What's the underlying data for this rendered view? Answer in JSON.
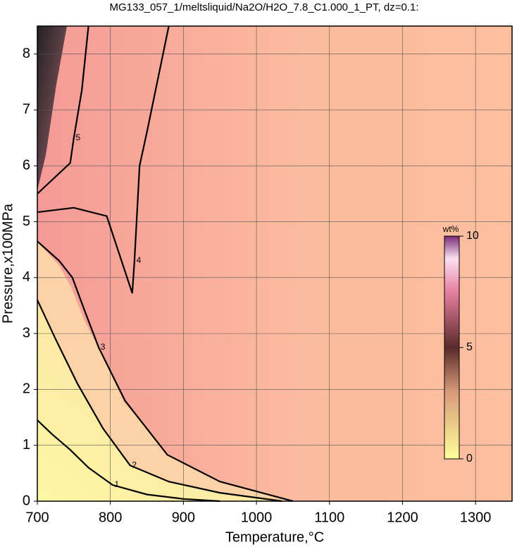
{
  "chart_data": {
    "type": "contour",
    "title": "MG133_057_1/meltsliquid/Na2O/H2O_7.8_C1.000_1_PT, dz=0.1:",
    "xlabel": "Temperature,°C",
    "ylabel": "Pressure,x100MPa",
    "xlim": [
      700,
      1350
    ],
    "ylim": [
      0,
      8.5
    ],
    "xticks": [
      700,
      800,
      900,
      1000,
      1100,
      1200,
      1300
    ],
    "yticks": [
      0,
      1,
      2,
      3,
      4,
      5,
      6,
      7,
      8
    ],
    "grid": true,
    "colorbar": {
      "label": "wt%",
      "lim": [
        0,
        10
      ],
      "ticks": [
        0,
        5,
        10
      ]
    },
    "contours": [
      {
        "level": 1,
        "x": [
          700,
          720,
          745,
          770,
          803,
          850,
          900,
          950
        ],
        "y": [
          1.45,
          1.2,
          0.92,
          0.6,
          0.29,
          0.12,
          0.04,
          0
        ]
      },
      {
        "level": 2,
        "x": [
          700,
          725,
          755,
          790,
          827,
          880,
          950,
          1035
        ],
        "y": [
          3.6,
          2.9,
          2.1,
          1.3,
          0.64,
          0.35,
          0.15,
          0
        ]
      },
      {
        "level": 3,
        "x": [
          700,
          730,
          748,
          765,
          784,
          820,
          878,
          950,
          1050
        ],
        "y": [
          4.65,
          4.3,
          4.0,
          3.4,
          2.75,
          1.8,
          0.83,
          0.35,
          0
        ]
      },
      {
        "level": 4,
        "x": [
          700,
          750,
          795,
          830,
          833,
          840,
          850,
          880
        ],
        "y": [
          5.17,
          5.25,
          5.1,
          3.72,
          4.3,
          6.0,
          6.6,
          8.5
        ]
      },
      {
        "level": 5,
        "x": [
          700,
          745,
          750,
          761,
          770
        ],
        "y": [
          5.5,
          6.05,
          6.5,
          7.36,
          8.5
        ]
      }
    ]
  }
}
